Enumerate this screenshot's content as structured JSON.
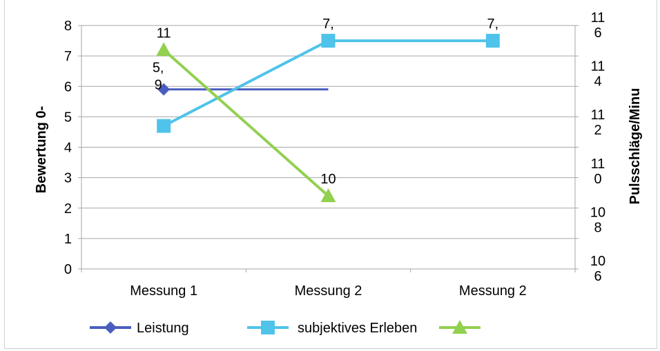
{
  "chart_data": {
    "type": "line",
    "categories": [
      "Messung 1",
      "Messung 2",
      "Messung 2"
    ],
    "y_left": {
      "label": "Bewertung 0-",
      "range": [
        0,
        8
      ],
      "ticks": [
        "0",
        "1",
        "2",
        "3",
        "4",
        "5",
        "6",
        "7",
        "8"
      ]
    },
    "y_right": {
      "label": "Pulsschläge/Minu",
      "tick_labels": [
        [
          "10",
          "6"
        ],
        [
          "10",
          "8"
        ],
        [
          "11",
          "0"
        ],
        [
          "11",
          "2"
        ],
        [
          "11",
          "4"
        ],
        [
          "11",
          "6"
        ]
      ]
    },
    "series": [
      {
        "name": "Leistung",
        "axis": "left",
        "color": "#4a5dbf",
        "marker": "diamond",
        "values": [
          5.9,
          5.9,
          null
        ],
        "end_at": 1,
        "labels": [
          [
            "5,",
            "9"
          ],
          null,
          null
        ]
      },
      {
        "name": "subjektives Erleben",
        "axis": "left",
        "color": "#4fc3ea",
        "marker": "square",
        "values": [
          4.7,
          7.5,
          7.5
        ],
        "labels": [
          null,
          [
            "7,"
          ],
          [
            "7,"
          ]
        ]
      },
      {
        "name": "",
        "axis": "right",
        "color": "#92d050",
        "marker": "triangle",
        "values": [
          7.2,
          2.4,
          null
        ],
        "labels": [
          [
            "11"
          ],
          [
            "10"
          ],
          null
        ]
      }
    ],
    "grid": "horizontal",
    "legend": "bottom"
  }
}
